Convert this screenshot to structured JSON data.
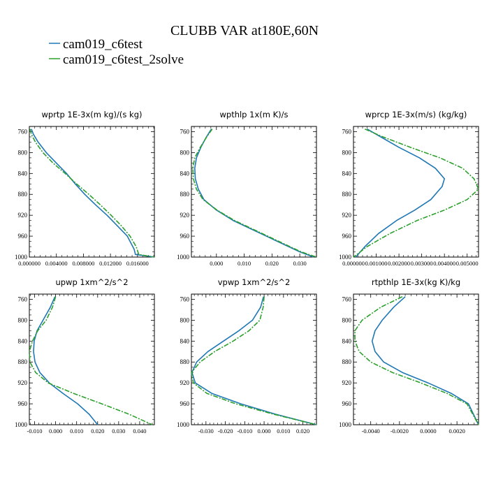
{
  "figure_title": "CLUBB VAR at180E,60N",
  "legend": [
    {
      "label": "cam019_c6test",
      "color": "#1f77b4",
      "dash": "solid"
    },
    {
      "label": "cam019_c6test_2solve",
      "color": "#2ca02c",
      "dash": "dashdot"
    }
  ],
  "chart_data": [
    {
      "type": "line",
      "title": "wprtp  1E-3x(m kg)/(s kg)",
      "xlim": [
        0.0,
        0.0185
      ],
      "ylim": [
        1000,
        750
      ],
      "xticks": [
        0.0,
        0.004,
        0.008,
        0.012,
        0.016
      ],
      "xticklabels": [
        "0.000000",
        "0.004000",
        "0.008000",
        "0.012000",
        "0.016000"
      ],
      "yticks": [
        760,
        800,
        840,
        880,
        920,
        960,
        1000
      ],
      "grid": false,
      "series": [
        {
          "name": "cam019_c6test",
          "x": [
            0.0003,
            0.0006,
            0.0013,
            0.0025,
            0.004,
            0.0055,
            0.0068,
            0.0082,
            0.0098,
            0.0115,
            0.013,
            0.0145,
            0.0155,
            0.0157,
            0.0185
          ],
          "y": [
            755,
            765,
            780,
            800,
            820,
            840,
            860,
            880,
            900,
            920,
            940,
            960,
            985,
            995,
            1000
          ]
        },
        {
          "name": "cam019_c6test_2solve",
          "x": [
            0.0001,
            0.0003,
            0.0009,
            0.002,
            0.0035,
            0.0053,
            0.007,
            0.0088,
            0.0105,
            0.0121,
            0.0136,
            0.0149,
            0.0158,
            0.0162,
            0.0185
          ],
          "y": [
            755,
            765,
            780,
            800,
            820,
            840,
            860,
            880,
            900,
            920,
            940,
            960,
            980,
            995,
            1000
          ]
        }
      ]
    },
    {
      "type": "line",
      "title": "wpthlp  1x(m K)/s",
      "xlim": [
        -0.009,
        0.036
      ],
      "ylim": [
        1000,
        750
      ],
      "xticks": [
        0.0,
        0.01,
        0.02,
        0.03
      ],
      "xticklabels": [
        "0.000",
        "0.010",
        "0.020",
        "0.030"
      ],
      "yticks": [
        760,
        800,
        840,
        880,
        920,
        960,
        1000
      ],
      "grid": false,
      "series": [
        {
          "name": "cam019_c6test",
          "x": [
            -0.0018,
            -0.0036,
            -0.0056,
            -0.0072,
            -0.0078,
            -0.0076,
            -0.0065,
            -0.0045,
            0.0,
            0.006,
            0.014,
            0.022,
            0.03,
            0.035
          ],
          "y": [
            755,
            770,
            790,
            810,
            830,
            850,
            870,
            890,
            910,
            930,
            950,
            970,
            990,
            1000
          ]
        },
        {
          "name": "cam019_c6test_2solve",
          "x": [
            -0.0015,
            -0.0035,
            -0.0058,
            -0.0078,
            -0.0085,
            -0.0083,
            -0.0072,
            -0.0048,
            0.0002,
            0.0065,
            0.0145,
            0.0225,
            0.0305,
            0.036
          ],
          "y": [
            755,
            770,
            790,
            810,
            830,
            850,
            870,
            890,
            910,
            930,
            950,
            970,
            990,
            1000
          ]
        }
      ]
    },
    {
      "type": "line",
      "title": "wprcp  1E-3x(m/s) (kg/kg)",
      "xlim": [
        0.0,
        0.0055
      ],
      "ylim": [
        1000,
        750
      ],
      "xticks": [
        0.0,
        0.001,
        0.002,
        0.003,
        0.004,
        0.005
      ],
      "xticklabels": [
        "0.000000",
        "0.001000",
        "0.002000",
        "0.003000",
        "0.004000",
        "0.005000"
      ],
      "yticks": [
        760,
        800,
        840,
        880,
        920,
        960,
        1000
      ],
      "grid": false,
      "series": [
        {
          "name": "cam019_c6test",
          "x": [
            0.0006,
            0.0012,
            0.002,
            0.0029,
            0.0036,
            0.004,
            0.0039,
            0.0034,
            0.0027,
            0.0019,
            0.0011,
            0.0005,
            0.0001
          ],
          "y": [
            755,
            770,
            790,
            810,
            830,
            850,
            865,
            890,
            910,
            930,
            955,
            980,
            1000
          ]
        },
        {
          "name": "cam019_c6test_2solve",
          "x": [
            0.0005,
            0.0013,
            0.0025,
            0.0038,
            0.0048,
            0.0053,
            0.0055,
            0.005,
            0.004,
            0.0028,
            0.0016,
            0.0006,
            0.0
          ],
          "y": [
            755,
            770,
            790,
            810,
            830,
            850,
            870,
            890,
            910,
            930,
            955,
            980,
            1000
          ]
        }
      ]
    },
    {
      "type": "line",
      "title": "upwp  1xm^2/s^2",
      "xlim": [
        -0.0125,
        0.047
      ],
      "ylim": [
        1000,
        750
      ],
      "xticks": [
        -0.01,
        0.0,
        0.01,
        0.02,
        0.03,
        0.04
      ],
      "xticklabels": [
        "-0.010",
        "0.000",
        "0.010",
        "0.020",
        "0.030",
        "0.040"
      ],
      "yticks": [
        760,
        800,
        840,
        880,
        920,
        960,
        1000
      ],
      "grid": false,
      "series": [
        {
          "name": "cam019_c6test",
          "x": [
            -0.0003,
            -0.0025,
            -0.006,
            -0.0088,
            -0.0102,
            -0.0105,
            -0.0098,
            -0.0075,
            -0.003,
            0.0035,
            0.0105,
            0.016,
            0.02
          ],
          "y": [
            755,
            775,
            800,
            820,
            840,
            860,
            880,
            900,
            920,
            940,
            960,
            980,
            1000
          ]
        },
        {
          "name": "cam019_c6test_2solve",
          "x": [
            0.0,
            -0.0015,
            -0.0045,
            -0.0085,
            -0.011,
            -0.0125,
            -0.0122,
            -0.0095,
            -0.0035,
            0.0085,
            0.022,
            0.035,
            0.046
          ],
          "y": [
            755,
            775,
            800,
            820,
            840,
            860,
            880,
            900,
            920,
            940,
            960,
            980,
            1000
          ]
        }
      ]
    },
    {
      "type": "line",
      "title": "vpwp  1xm^2/s^2",
      "xlim": [
        -0.0375,
        0.027
      ],
      "ylim": [
        1000,
        750
      ],
      "xticks": [
        -0.03,
        -0.02,
        -0.01,
        0.0,
        0.01,
        0.02
      ],
      "xticklabels": [
        "-0.030",
        "-0.020",
        "-0.010",
        "0.000",
        "0.010",
        "0.020"
      ],
      "yticks": [
        760,
        800,
        840,
        880,
        920,
        960,
        1000
      ],
      "grid": false,
      "series": [
        {
          "name": "cam019_c6test",
          "x": [
            -0.0003,
            -0.0018,
            -0.006,
            -0.013,
            -0.021,
            -0.029,
            -0.0348,
            -0.0372,
            -0.0355,
            -0.027,
            -0.012,
            0.006,
            0.027
          ],
          "y": [
            755,
            775,
            800,
            820,
            840,
            860,
            880,
            900,
            920,
            940,
            960,
            980,
            1000
          ]
        },
        {
          "name": "cam019_c6test_2solve",
          "x": [
            0.0,
            -0.0005,
            -0.0022,
            -0.0078,
            -0.016,
            -0.0255,
            -0.033,
            -0.0375,
            -0.0365,
            -0.0295,
            -0.0145,
            0.005,
            0.027
          ],
          "y": [
            755,
            775,
            800,
            820,
            840,
            860,
            880,
            900,
            920,
            940,
            960,
            980,
            1000
          ]
        }
      ]
    },
    {
      "type": "line",
      "title": "rtpthlp  1E-3x(kg K)/kg",
      "xlim": [
        -0.0052,
        0.0035
      ],
      "ylim": [
        1000,
        750
      ],
      "xticks": [
        -0.004,
        -0.002,
        0.0,
        0.002
      ],
      "xticklabels": [
        "-0.0040",
        "-0.0020",
        "0.0000",
        "0.0020"
      ],
      "yticks": [
        760,
        800,
        840,
        880,
        920,
        960,
        1000
      ],
      "grid": false,
      "series": [
        {
          "name": "cam019_c6test",
          "x": [
            -0.0016,
            -0.0024,
            -0.0032,
            -0.0037,
            -0.0039,
            -0.0037,
            -0.0031,
            -0.0018,
            0.0,
            0.0016,
            0.0028,
            0.0035
          ],
          "y": [
            755,
            775,
            800,
            820,
            840,
            860,
            880,
            900,
            920,
            940,
            960,
            1000
          ]
        },
        {
          "name": "cam019_c6test_2solve",
          "x": [
            -0.0018,
            -0.0033,
            -0.0046,
            -0.0051,
            -0.0051,
            -0.0048,
            -0.004,
            -0.0025,
            -0.0005,
            0.0013,
            0.0027,
            0.0035
          ],
          "y": [
            755,
            775,
            800,
            820,
            840,
            860,
            880,
            900,
            920,
            940,
            960,
            1000
          ]
        }
      ]
    }
  ]
}
